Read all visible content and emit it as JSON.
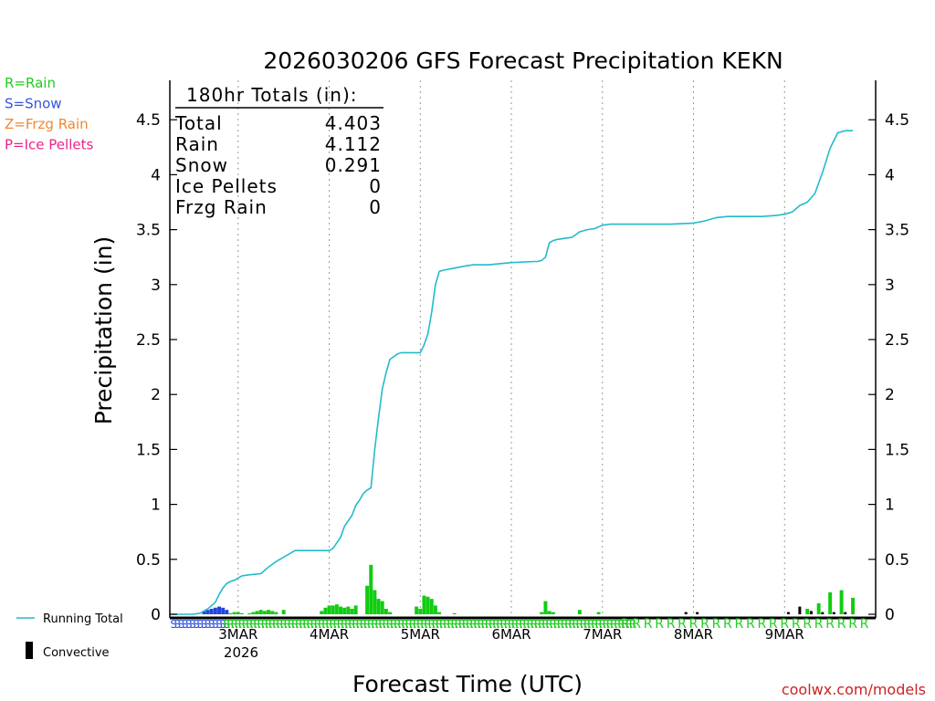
{
  "chart_data": {
    "type": "bar+line",
    "title": "2026030206 GFS Forecast Precipitation KEKN",
    "ylabel": "Precipitation (in)",
    "xlabel": "Forecast Time (UTC)",
    "ylim": [
      0,
      4.8
    ],
    "yticks": [
      "0",
      "0.5",
      "1",
      "1.5",
      "2",
      "2.5",
      "3",
      "3.5",
      "4",
      "4.5"
    ],
    "xlim_hours": [
      0,
      186
    ],
    "day_labels": [
      "3MAR",
      "4MAR",
      "5MAR",
      "6MAR",
      "7MAR",
      "8MAR",
      "9MAR"
    ],
    "year_label": "2026",
    "legend_types": [
      {
        "label": "R=Rain",
        "color": "#22cc22"
      },
      {
        "label": "S=Snow",
        "color": "#3355dd"
      },
      {
        "label": "Z=Frzg Rain",
        "color": "#ee8833"
      },
      {
        "label": "P=Ice Pellets",
        "color": "#ee2288"
      }
    ],
    "legend_bottom": {
      "running_total": "Running Total",
      "convective": "Convective"
    },
    "totals": {
      "header": "180hr Totals (in):",
      "rows": [
        {
          "label": "Total",
          "value": "4.403"
        },
        {
          "label": "Rain",
          "value": "4.112"
        },
        {
          "label": "Snow",
          "value": "0.291"
        },
        {
          "label": "Ice Pellets",
          "value": "0"
        },
        {
          "label": "Frzg Rain",
          "value": "0"
        }
      ]
    },
    "running_total": {
      "hours": [
        0,
        6,
        8,
        10,
        12,
        13,
        14,
        15,
        16,
        17,
        18,
        19,
        21,
        24,
        26,
        28,
        30,
        32,
        33,
        35,
        40,
        42,
        43,
        45,
        46,
        48,
        49,
        50,
        51,
        52,
        53,
        54,
        55,
        56,
        57,
        58,
        60,
        61,
        62,
        66,
        67,
        68,
        69,
        70,
        71,
        72,
        75,
        78,
        80,
        84,
        90,
        96,
        97,
        98,
        99,
        100,
        101,
        102,
        104,
        106,
        108,
        110,
        112,
        114,
        116,
        120,
        126,
        132,
        138,
        141,
        144,
        147,
        150,
        156,
        160,
        162,
        164,
        166,
        168,
        170,
        172,
        174,
        176,
        178,
        180
      ],
      "values": [
        0,
        0,
        0.01,
        0.05,
        0.11,
        0.18,
        0.24,
        0.28,
        0.3,
        0.31,
        0.33,
        0.35,
        0.36,
        0.37,
        0.43,
        0.48,
        0.52,
        0.56,
        0.58,
        0.58,
        0.58,
        0.58,
        0.6,
        0.7,
        0.8,
        0.9,
        0.99,
        1.04,
        1.1,
        1.13,
        1.15,
        1.5,
        1.79,
        2.05,
        2.2,
        2.32,
        2.37,
        2.38,
        2.38,
        2.38,
        2.45,
        2.55,
        2.75,
        3.0,
        3.12,
        3.13,
        3.15,
        3.17,
        3.18,
        3.18,
        3.2,
        3.21,
        3.21,
        3.22,
        3.25,
        3.38,
        3.4,
        3.41,
        3.42,
        3.43,
        3.48,
        3.5,
        3.51,
        3.54,
        3.55,
        3.55,
        3.55,
        3.55,
        3.56,
        3.58,
        3.61,
        3.62,
        3.62,
        3.62,
        3.63,
        3.64,
        3.66,
        3.72,
        3.75,
        3.83,
        4.02,
        4.24,
        4.38,
        4.4,
        4.4
      ]
    },
    "precip_bars": [
      {
        "h": 9,
        "v": 0.03,
        "type": "snow"
      },
      {
        "h": 10,
        "v": 0.04,
        "type": "snow"
      },
      {
        "h": 11,
        "v": 0.05,
        "type": "snow"
      },
      {
        "h": 12,
        "v": 0.06,
        "type": "snow"
      },
      {
        "h": 13,
        "v": 0.07,
        "type": "snow"
      },
      {
        "h": 14,
        "v": 0.06,
        "type": "snow"
      },
      {
        "h": 15,
        "v": 0.04,
        "type": "snow"
      },
      {
        "h": 16,
        "v": 0.01,
        "type": "rain"
      },
      {
        "h": 17,
        "v": 0.02,
        "type": "rain"
      },
      {
        "h": 18,
        "v": 0.02,
        "type": "rain"
      },
      {
        "h": 19,
        "v": 0.01,
        "type": "rain"
      },
      {
        "h": 21,
        "v": 0.01,
        "type": "rain"
      },
      {
        "h": 22,
        "v": 0.02,
        "type": "rain"
      },
      {
        "h": 23,
        "v": 0.03,
        "type": "rain"
      },
      {
        "h": 24,
        "v": 0.04,
        "type": "rain"
      },
      {
        "h": 25,
        "v": 0.03,
        "type": "rain"
      },
      {
        "h": 26,
        "v": 0.04,
        "type": "rain"
      },
      {
        "h": 27,
        "v": 0.03,
        "type": "rain"
      },
      {
        "h": 28,
        "v": 0.02,
        "type": "rain"
      },
      {
        "h": 30,
        "v": 0.04,
        "type": "rain"
      },
      {
        "h": 40,
        "v": 0.03,
        "type": "rain"
      },
      {
        "h": 41,
        "v": 0.06,
        "type": "rain"
      },
      {
        "h": 42,
        "v": 0.08,
        "type": "rain"
      },
      {
        "h": 43,
        "v": 0.08,
        "type": "rain"
      },
      {
        "h": 44,
        "v": 0.09,
        "type": "rain"
      },
      {
        "h": 45,
        "v": 0.07,
        "type": "rain"
      },
      {
        "h": 46,
        "v": 0.06,
        "type": "rain"
      },
      {
        "h": 47,
        "v": 0.07,
        "type": "rain"
      },
      {
        "h": 48,
        "v": 0.05,
        "type": "rain"
      },
      {
        "h": 49,
        "v": 0.08,
        "type": "rain"
      },
      {
        "h": 52,
        "v": 0.26,
        "type": "rain"
      },
      {
        "h": 53,
        "v": 0.45,
        "type": "rain"
      },
      {
        "h": 54,
        "v": 0.22,
        "type": "rain"
      },
      {
        "h": 55,
        "v": 0.14,
        "type": "rain"
      },
      {
        "h": 56,
        "v": 0.12,
        "type": "rain"
      },
      {
        "h": 57,
        "v": 0.05,
        "type": "rain"
      },
      {
        "h": 58,
        "v": 0.02,
        "type": "rain"
      },
      {
        "h": 65,
        "v": 0.07,
        "type": "rain"
      },
      {
        "h": 66,
        "v": 0.05,
        "type": "rain"
      },
      {
        "h": 67,
        "v": 0.17,
        "type": "rain"
      },
      {
        "h": 68,
        "v": 0.16,
        "type": "rain"
      },
      {
        "h": 69,
        "v": 0.14,
        "type": "rain"
      },
      {
        "h": 70,
        "v": 0.08,
        "type": "rain"
      },
      {
        "h": 71,
        "v": 0.02,
        "type": "rain"
      },
      {
        "h": 75,
        "v": 0.01,
        "type": "rain"
      },
      {
        "h": 98,
        "v": 0.02,
        "type": "rain"
      },
      {
        "h": 99,
        "v": 0.12,
        "type": "rain"
      },
      {
        "h": 100,
        "v": 0.03,
        "type": "rain"
      },
      {
        "h": 101,
        "v": 0.02,
        "type": "rain"
      },
      {
        "h": 108,
        "v": 0.04,
        "type": "rain"
      },
      {
        "h": 113,
        "v": 0.02,
        "type": "rain"
      },
      {
        "h": 168,
        "v": 0.05,
        "type": "rain"
      },
      {
        "h": 171,
        "v": 0.1,
        "type": "rain"
      },
      {
        "h": 174,
        "v": 0.2,
        "type": "rain"
      },
      {
        "h": 177,
        "v": 0.22,
        "type": "rain"
      },
      {
        "h": 180,
        "v": 0.15,
        "type": "rain"
      }
    ],
    "convective_bars": [
      {
        "h": 136,
        "v": 0.02
      },
      {
        "h": 139,
        "v": 0.02
      },
      {
        "h": 163,
        "v": 0.02
      },
      {
        "h": 166,
        "v": 0.07
      },
      {
        "h": 169,
        "v": 0.03
      },
      {
        "h": 172,
        "v": 0.02
      },
      {
        "h": 175,
        "v": 0.02
      },
      {
        "h": 178,
        "v": 0.02
      }
    ],
    "type_markers": {
      "snow_letter": "S",
      "snow_hours": [
        1,
        15
      ],
      "rain_letter": "R",
      "rain_dense_hours": [
        15,
        122
      ],
      "rain_sparse_start": 120,
      "rain_sparse_step": 3,
      "rain_sparse_end": 183
    },
    "credit": "coolwx.com/models"
  }
}
